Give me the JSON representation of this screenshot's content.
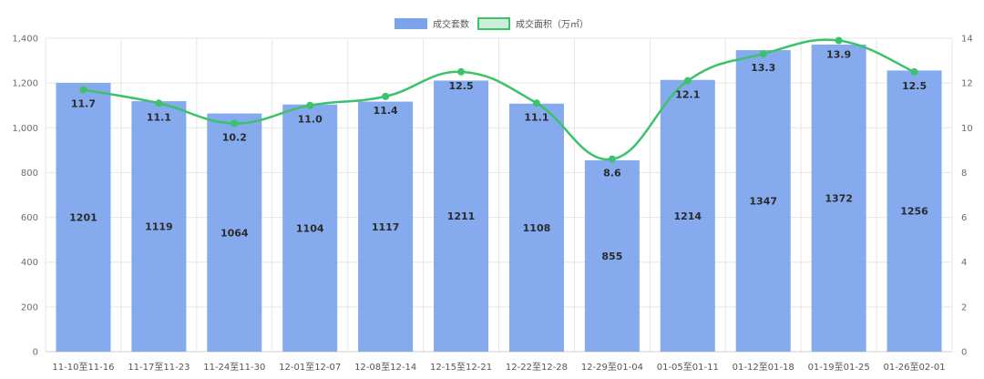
{
  "chart_data": {
    "type": "bar",
    "categories": [
      "11-10至11-16",
      "11-17至11-23",
      "11-24至11-30",
      "12-01至12-07",
      "12-08至12-14",
      "12-15至12-21",
      "12-22至12-28",
      "12-29至01-04",
      "01-05至01-11",
      "01-12至01-18",
      "01-19至01-25",
      "01-26至02-01"
    ],
    "series": [
      {
        "name": "成交套数",
        "type": "bar",
        "axis": "left",
        "values": [
          1201,
          1119,
          1064,
          1104,
          1117,
          1211,
          1108,
          855,
          1214,
          1347,
          1372,
          1256
        ]
      },
      {
        "name": "成交面积（万㎡）",
        "type": "line",
        "axis": "right",
        "values": [
          11.7,
          11.1,
          10.2,
          11.0,
          11.4,
          12.5,
          11.1,
          8.6,
          12.1,
          13.3,
          13.9,
          12.5
        ]
      }
    ],
    "y_left": {
      "min": 0,
      "max": 1400,
      "ticks": [
        "0",
        "200",
        "400",
        "600",
        "800",
        "1,000",
        "1,200",
        "1,400"
      ]
    },
    "y_right": {
      "min": 0,
      "max": 14,
      "ticks": [
        "0",
        "2",
        "4",
        "6",
        "8",
        "10",
        "12",
        "14"
      ]
    },
    "legend": "top-center",
    "grid": true,
    "colors": {
      "bar": "#7ba3ec",
      "line": "#3cc26a",
      "grid": "#e6e6e6",
      "axis_text": "#6b6b6b"
    }
  }
}
